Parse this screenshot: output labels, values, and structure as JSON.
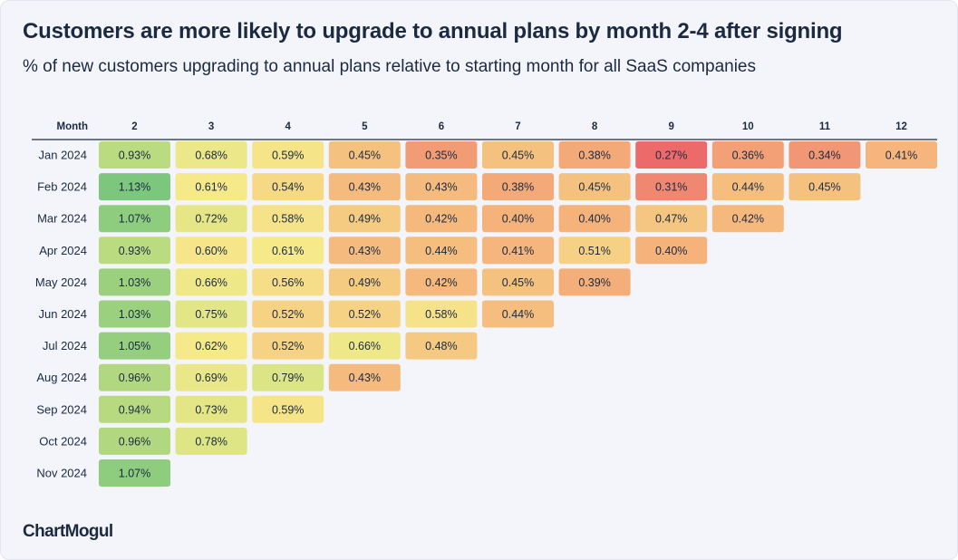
{
  "title": "Customers are more likely to upgrade to annual plans by month 2-4 after signing",
  "subtitle": "% of new customers upgrading to annual plans relative to starting month for all SaaS companies",
  "brand": "ChartMogul",
  "chart_data": {
    "type": "heatmap",
    "row_header": "Month",
    "columns": [
      "2",
      "3",
      "4",
      "5",
      "6",
      "7",
      "8",
      "9",
      "10",
      "11",
      "12"
    ],
    "rows": [
      "Jan 2024",
      "Feb 2024",
      "Mar 2024",
      "Apr 2024",
      "May 2024",
      "Jun 2024",
      "Jul 2024",
      "Aug 2024",
      "Sep 2024",
      "Oct 2024",
      "Nov 2024"
    ],
    "values": [
      [
        0.93,
        0.68,
        0.59,
        0.45,
        0.35,
        0.45,
        0.38,
        0.27,
        0.36,
        0.34,
        0.41
      ],
      [
        1.13,
        0.61,
        0.54,
        0.43,
        0.43,
        0.38,
        0.45,
        0.31,
        0.44,
        0.45
      ],
      [
        1.07,
        0.72,
        0.58,
        0.49,
        0.42,
        0.4,
        0.4,
        0.47,
        0.42
      ],
      [
        0.93,
        0.6,
        0.61,
        0.43,
        0.44,
        0.41,
        0.51,
        0.4
      ],
      [
        1.03,
        0.66,
        0.56,
        0.49,
        0.42,
        0.45,
        0.39
      ],
      [
        1.03,
        0.75,
        0.52,
        0.52,
        0.58,
        0.44
      ],
      [
        1.05,
        0.62,
        0.52,
        0.66,
        0.48
      ],
      [
        0.96,
        0.69,
        0.79,
        0.43
      ],
      [
        0.94,
        0.73,
        0.59
      ],
      [
        0.96,
        0.78
      ],
      [
        1.07
      ]
    ],
    "labels": [
      [
        "0.93%",
        "0.68%",
        "0.59%",
        "0.45%",
        "0.35%",
        "0.45%",
        "0.38%",
        "0.27%",
        "0.36%",
        "0.34%",
        "0.41%"
      ],
      [
        "1.13%",
        "0.61%",
        "0.54%",
        "0.43%",
        "0.43%",
        "0.38%",
        "0.45%",
        "0.31%",
        "0.44%",
        "0.45%"
      ],
      [
        "1.07%",
        "0.72%",
        "0.58%",
        "0.49%",
        "0.42%",
        "0.40%",
        "0.40%",
        "0.47%",
        "0.42%"
      ],
      [
        "0.93%",
        "0.60%",
        "0.61%",
        "0.43%",
        "0.44%",
        "0.41%",
        "0.51%",
        "0.40%"
      ],
      [
        "1.03%",
        "0.66%",
        "0.56%",
        "0.49%",
        "0.42%",
        "0.45%",
        "0.39%"
      ],
      [
        "1.03%",
        "0.75%",
        "0.52%",
        "0.52%",
        "0.58%",
        "0.44%"
      ],
      [
        "1.05%",
        "0.62%",
        "0.52%",
        "0.66%",
        "0.48%"
      ],
      [
        "0.96%",
        "0.69%",
        "0.79%",
        "0.43%"
      ],
      [
        "0.94%",
        "0.73%",
        "0.59%"
      ],
      [
        "0.96%",
        "0.78%"
      ],
      [
        "1.07%"
      ]
    ],
    "color_scale": [
      "#ec6a6a",
      "#f5b47c",
      "#f6e98a",
      "#d3e383",
      "#7cc67d"
    ]
  }
}
